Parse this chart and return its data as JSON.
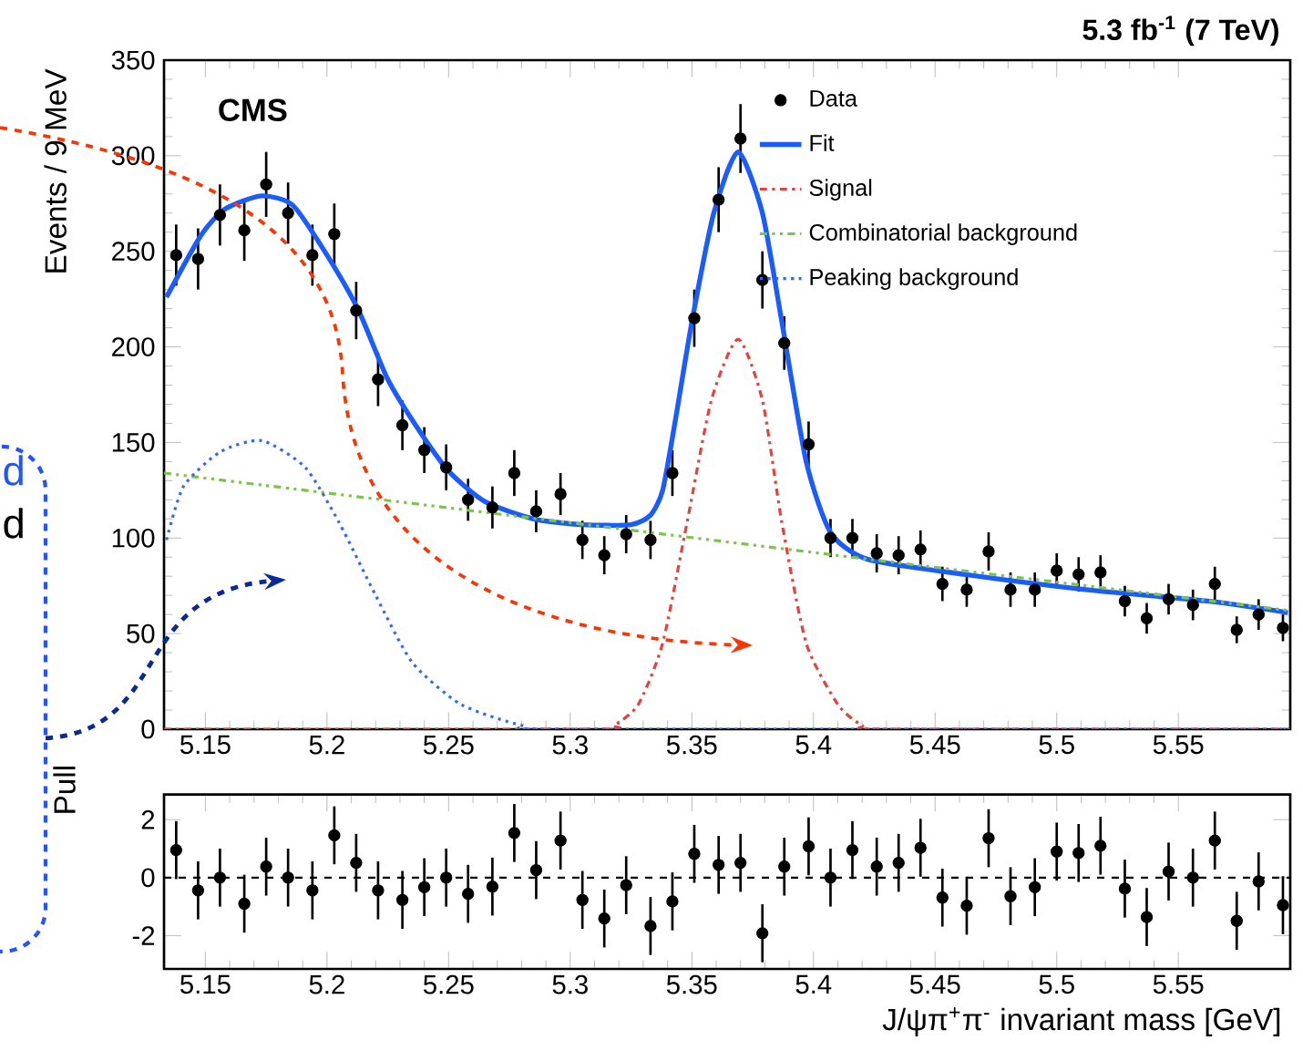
{
  "chart_data": [
    {
      "type": "scatter",
      "title": "5.3 fb$^{-1}$ (7 TeV)",
      "ylabel": "Events / 9 MeV",
      "annotations": [
        "CMS",
        "d",
        "d"
      ],
      "xlim": [
        5.133,
        5.596
      ],
      "xticks": [
        5.15,
        5.2,
        5.25,
        5.3,
        5.35,
        5.4,
        5.45,
        5.5,
        5.55
      ],
      "ylim": [
        0,
        350
      ],
      "yticks": [
        0,
        50,
        100,
        150,
        200,
        250,
        300,
        350
      ],
      "legend": "top right",
      "x": [
        5.138,
        5.147,
        5.156,
        5.166,
        5.175,
        5.184,
        5.194,
        5.203,
        5.212,
        5.221,
        5.231,
        5.24,
        5.249,
        5.258,
        5.268,
        5.277,
        5.286,
        5.296,
        5.305,
        5.314,
        5.323,
        5.333,
        5.342,
        5.351,
        5.361,
        5.37,
        5.379,
        5.388,
        5.398,
        5.407,
        5.416,
        5.426,
        5.435,
        5.444,
        5.453,
        5.463,
        5.472,
        5.481,
        5.491,
        5.5,
        5.509,
        5.518,
        5.528,
        5.537,
        5.546,
        5.556,
        5.565,
        5.574,
        5.583,
        5.593
      ],
      "series": [
        {
          "name": "Data",
          "marker": "circle",
          "color": "#000000",
          "values": [
            248,
            246,
            269,
            261,
            285,
            270,
            248,
            259,
            219,
            183,
            159,
            146,
            137,
            120,
            116,
            134,
            114,
            123,
            99,
            91,
            102,
            99,
            134,
            215,
            277,
            309,
            235,
            202,
            149,
            100,
            100,
            92,
            91,
            94,
            76,
            73,
            93,
            73,
            73,
            83,
            81,
            82,
            67,
            58,
            68,
            65,
            76,
            52,
            60,
            53
          ],
          "errors": [
            16,
            16,
            16,
            16,
            17,
            16,
            16,
            16,
            15,
            14,
            13,
            12,
            12,
            11,
            11,
            12,
            11,
            11,
            10,
            10,
            10,
            10,
            12,
            15,
            17,
            18,
            15,
            14,
            12,
            10,
            10,
            10,
            10,
            10,
            9,
            9,
            10,
            9,
            9,
            9,
            9,
            9,
            8,
            8,
            8,
            8,
            9,
            7,
            8,
            7
          ]
        },
        {
          "name": "Fit",
          "type": "line",
          "line_style": "solid",
          "color": "#1a5cff",
          "x": [
            5.134,
            5.148,
            5.158,
            5.173,
            5.186,
            5.2,
            5.213,
            5.225,
            5.238,
            5.25,
            5.265,
            5.285,
            5.305,
            5.325,
            5.333,
            5.338,
            5.343,
            5.35,
            5.359,
            5.369,
            5.379,
            5.387,
            5.397,
            5.407,
            5.422,
            5.462,
            5.512,
            5.562,
            5.595
          ],
          "values": [
            226,
            258,
            272,
            279,
            274,
            248,
            219,
            183,
            156,
            135,
            119,
            110,
            107,
            107,
            112,
            125,
            160,
            213,
            270,
            302,
            270,
            213,
            140,
            103,
            89,
            81,
            73,
            67,
            61
          ]
        },
        {
          "name": "Signal",
          "type": "line",
          "line_style": "dashdotted",
          "color": "#e8413b",
          "x": [
            5.133,
            5.31,
            5.318,
            5.328,
            5.338,
            5.348,
            5.358,
            5.369,
            5.379,
            5.387,
            5.397,
            5.41,
            5.42,
            5.43,
            5.596
          ],
          "values": [
            0,
            0,
            2,
            13,
            45,
            108,
            172,
            204,
            172,
            108,
            45,
            13,
            2,
            0,
            0
          ]
        },
        {
          "name": "Combinatorial background",
          "type": "line",
          "line_style": "dashdotdotted",
          "color": "#7dc44a",
          "x": [
            5.133,
            5.3,
            5.596
          ],
          "values": [
            134,
            108,
            62
          ]
        },
        {
          "name": "Peaking background",
          "type": "line",
          "line_style": "dotted",
          "color": "#3366ff",
          "x": [
            5.134,
            5.141,
            5.156,
            5.173,
            5.191,
            5.205,
            5.22,
            5.235,
            5.255,
            5.28,
            5.3,
            5.596
          ],
          "values": [
            99,
            127,
            145,
            151,
            137,
            108,
            70,
            35,
            13,
            2,
            0,
            0
          ]
        }
      ]
    },
    {
      "type": "scatter",
      "ylabel": "Pull",
      "xlabel": "J/ψπ$^{+}$π$^{-}$ invariant mass [GeV]",
      "xlim": [
        5.133,
        5.596
      ],
      "xticks": [
        5.15,
        5.2,
        5.25,
        5.3,
        5.35,
        5.4,
        5.45,
        5.5,
        5.55
      ],
      "ylim": [
        -3.15,
        2.87
      ],
      "yticks": [
        -2,
        0,
        2
      ],
      "ref_lines": [
        {
          "axis": "y",
          "value": 0,
          "line_style": "dashed"
        }
      ],
      "x": [
        5.138,
        5.147,
        5.156,
        5.166,
        5.175,
        5.184,
        5.194,
        5.203,
        5.212,
        5.221,
        5.231,
        5.24,
        5.249,
        5.258,
        5.268,
        5.277,
        5.286,
        5.296,
        5.305,
        5.314,
        5.323,
        5.333,
        5.342,
        5.351,
        5.361,
        5.37,
        5.379,
        5.388,
        5.398,
        5.407,
        5.416,
        5.426,
        5.435,
        5.444,
        5.453,
        5.463,
        5.472,
        5.481,
        5.491,
        5.5,
        5.509,
        5.518,
        5.528,
        5.537,
        5.546,
        5.556,
        5.565,
        5.574,
        5.583,
        5.593
      ],
      "series": [
        {
          "marker": "circle",
          "color": "#000000",
          "values": [
            0.95,
            -0.44,
            0,
            -0.9,
            0.38,
            0,
            -0.44,
            1.46,
            0.51,
            -0.44,
            -0.77,
            -0.33,
            0,
            -0.56,
            -0.31,
            1.54,
            0.26,
            1.28,
            -0.77,
            -1.41,
            -0.26,
            -1.67,
            -0.82,
            0.82,
            0.44,
            0.51,
            -1.92,
            0.38,
            1.08,
            0,
            0.95,
            0.38,
            0.51,
            1.03,
            -0.69,
            -0.97,
            1.36,
            -0.64,
            -0.33,
            0.9,
            0.85,
            1.1,
            -0.38,
            -1.36,
            0.21,
            0,
            1.28,
            -1.49,
            -0.13,
            -0.95
          ],
          "errors": [
            1,
            1,
            1,
            1,
            1,
            1,
            1,
            1,
            1,
            1,
            1,
            1,
            1,
            1,
            1,
            1,
            1,
            1,
            1,
            1,
            1,
            1,
            1,
            1,
            1,
            1,
            1,
            1,
            1,
            1,
            1,
            1,
            1,
            1,
            1,
            1,
            1,
            1,
            1,
            1,
            1,
            1,
            1,
            1,
            1,
            1,
            1,
            1,
            1,
            1
          ]
        }
      ]
    }
  ]
}
